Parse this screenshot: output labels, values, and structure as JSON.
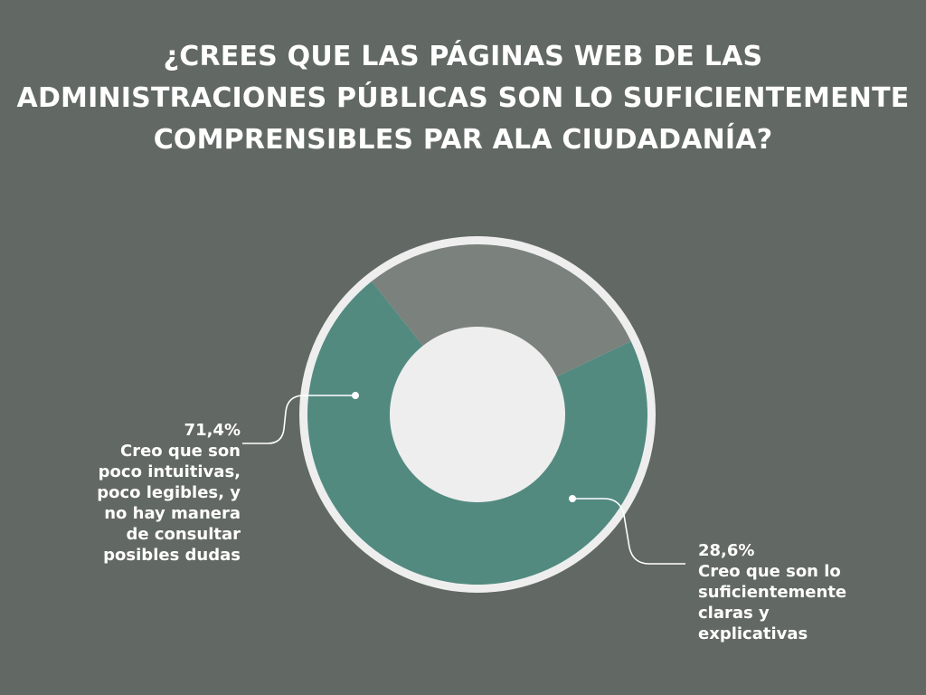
{
  "title_lines": [
    "¿CREES QUE LAS PÁGINAS WEB DE LAS",
    "ADMINISTRACIONES PÚBLICAS SON LO SUFICIENTEMENTE",
    "COMPRENSIBLES PAR ALA CIUDADANÍA?"
  ],
  "colors": {
    "background": "#626863",
    "ring": "#eeeeee",
    "hole": "#eeeeee",
    "connector": "#ffffff"
  },
  "chart_data": {
    "type": "pie",
    "style": "donut",
    "title": "¿CREES QUE LAS PÁGINAS WEB DE LAS ADMINISTRACIONES PÚBLICAS SON LO SUFICIENTEMENTE COMPRENSIBLES PAR ALA CIUDADANÍA?",
    "slices": [
      {
        "value": 71.4,
        "value_label": "71,4%",
        "label": "Creo que son\npoco intuitivas,\npoco legibles, y\nno hay manera\nde consultar\nposibles dudas",
        "color": "#528a80"
      },
      {
        "value": 28.6,
        "value_label": "28,6%",
        "label": "Creo que son lo\nsuficientemente\nclaras y\nexplicativas",
        "color": "#7b817c"
      }
    ]
  }
}
